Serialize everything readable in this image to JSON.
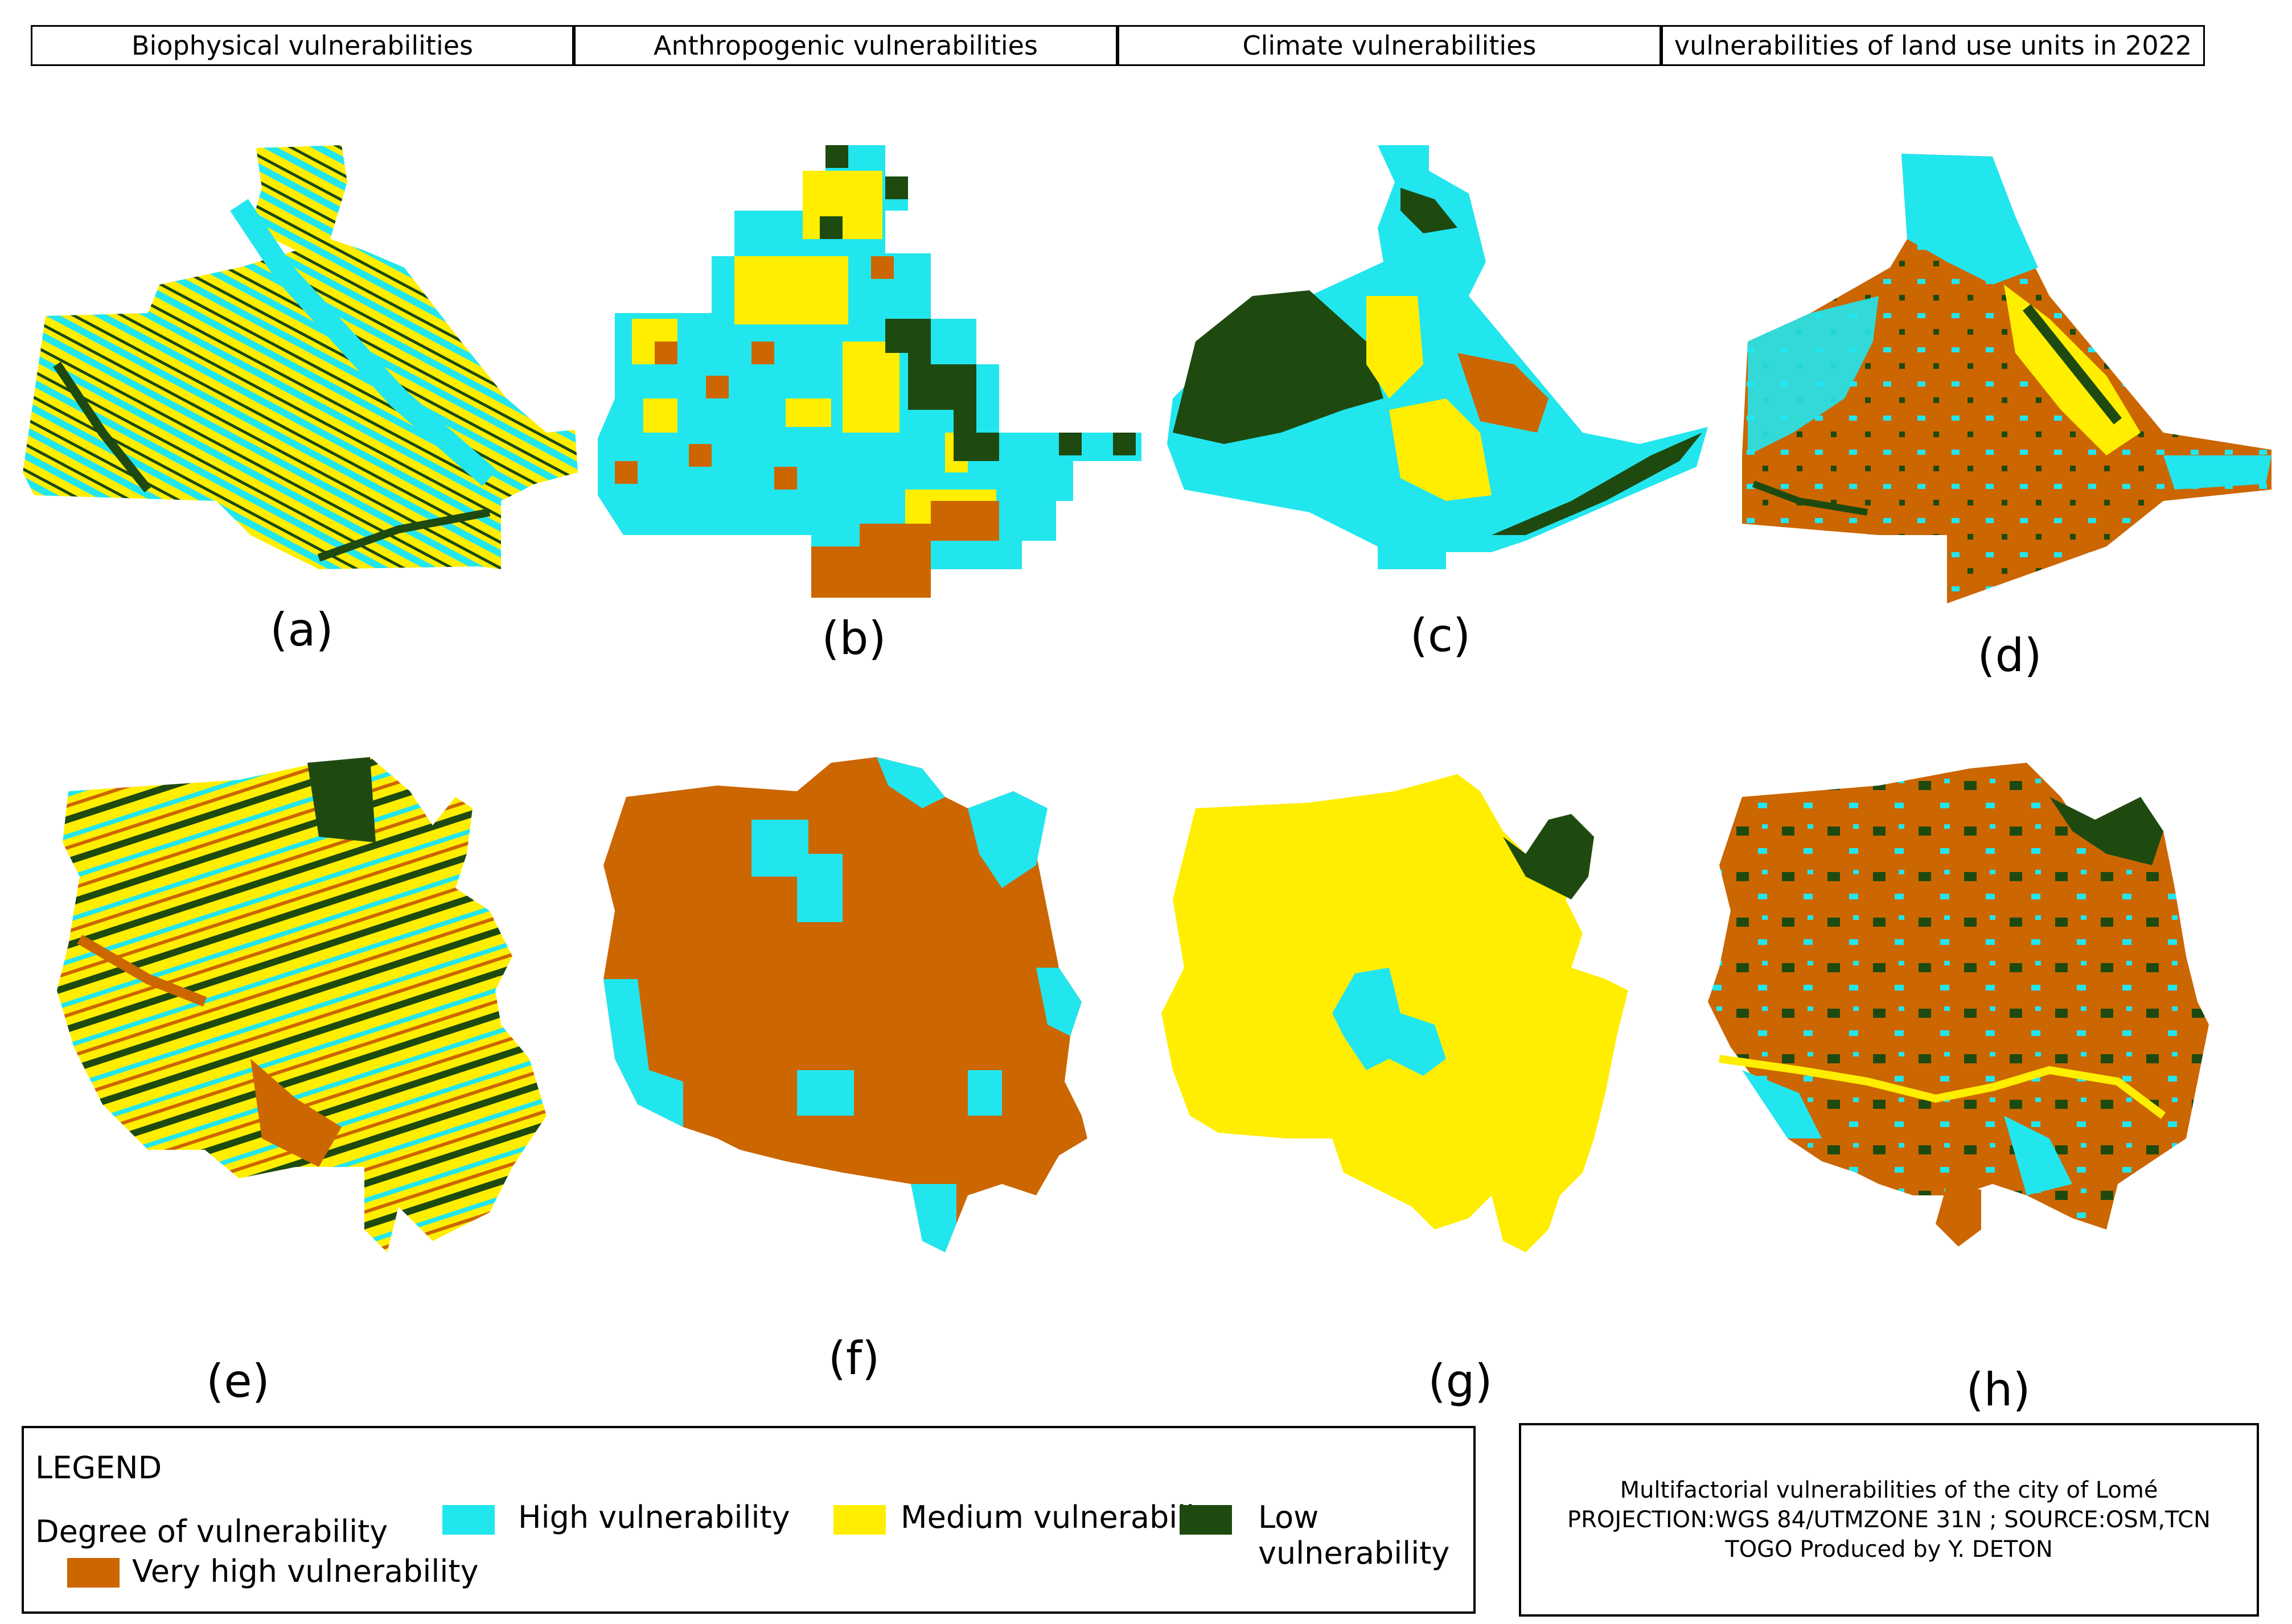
{
  "headers": [
    "Biophysical vulnerabilities",
    "Anthropogenic vulnerabilities",
    "Climate vulnerabilities",
    "vulnerabilities of land use units in 2022"
  ],
  "panel_labels": [
    "(a)",
    "(b)",
    "(c)",
    "(d)",
    "(e)",
    "(f)",
    "(g)",
    "(h)"
  ],
  "legend": {
    "title": "LEGEND",
    "subtitle": "Degree of vulnerability",
    "items": [
      {
        "label": "High vulnerability",
        "color": "#22e6ee"
      },
      {
        "label": "Medium vulnerability",
        "color": "#ffee00"
      },
      {
        "label": "Low vulnerability",
        "color": "#1e4a10"
      },
      {
        "label": "Very high vulnerability",
        "color": "#cc6600"
      }
    ]
  },
  "info": {
    "line1": "Multifactorial vulnerabilities of the city of Lomé",
    "line2": "PROJECTION:WGS 84/UTMZONE 31N ; SOURCE:OSM,TCN",
    "line3": "TOGO Produced by Y. DETON"
  }
}
